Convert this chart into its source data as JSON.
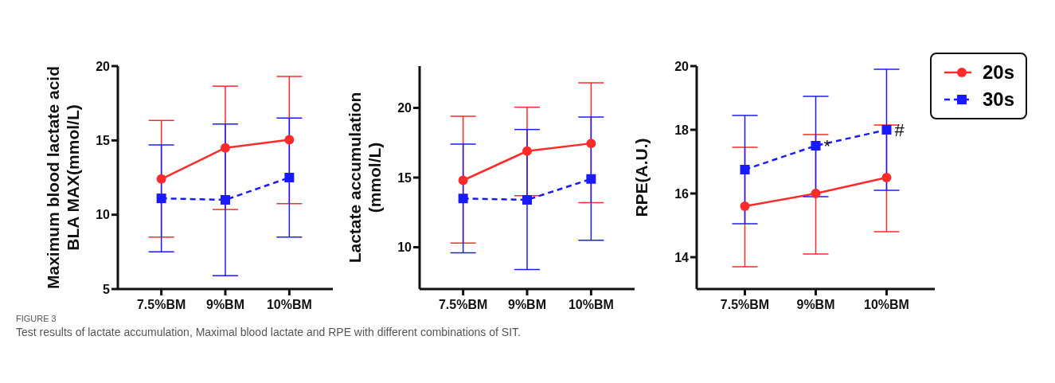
{
  "chart_data": [
    {
      "type": "line",
      "ylabel": "Maximum blood lactate acid\nBLA MAX(mmol/L)",
      "categories": [
        "7.5%BM",
        "9%BM",
        "10%BM"
      ],
      "ylim": [
        5,
        20
      ],
      "yticks": [
        5,
        10,
        15,
        20
      ],
      "grid": false,
      "legend": false,
      "series": [
        {
          "color": "#ff2a2a",
          "marker": "circle",
          "line_style": "solid",
          "values": [
            12.4,
            14.5,
            15.05
          ],
          "errors": [
            [
              8.5,
              16.35
            ],
            [
              10.35,
              18.65
            ],
            [
              10.75,
              19.3
            ]
          ]
        },
        {
          "color": "#1a1aff",
          "marker": "square",
          "line_style": "dashed",
          "values": [
            11.1,
            11.0,
            12.5
          ],
          "errors": [
            [
              7.5,
              14.7
            ],
            [
              5.9,
              16.1
            ],
            [
              8.5,
              16.5
            ]
          ]
        }
      ],
      "annotations": [
        "FIGURE 3",
        "Test results of lactate accumulation, Maximal blood lactate and RPE with different combinations of SIT."
      ]
    },
    {
      "type": "line",
      "ylabel": "Lactate accumulation\n(mmol/L)",
      "categories": [
        "7.5%BM",
        "9%BM",
        "10%BM"
      ],
      "ylim": [
        7,
        23
      ],
      "yticks": [
        10,
        15,
        20
      ],
      "grid": false,
      "legend": false,
      "series": [
        {
          "color": "#ff2a2a",
          "marker": "circle",
          "line_style": "solid",
          "values": [
            14.8,
            16.9,
            17.45
          ],
          "errors": [
            [
              10.3,
              19.4
            ],
            [
              13.7,
              20.05
            ],
            [
              13.2,
              21.8
            ]
          ]
        },
        {
          "color": "#1a1aff",
          "marker": "square",
          "line_style": "dashed",
          "values": [
            13.5,
            13.4,
            14.9
          ],
          "errors": [
            [
              9.6,
              17.4
            ],
            [
              8.4,
              18.45
            ],
            [
              10.5,
              19.35
            ]
          ]
        }
      ]
    },
    {
      "type": "line",
      "ylabel": "RPE(A.U.)",
      "categories": [
        "7.5%BM",
        "9%BM",
        "10%BM"
      ],
      "ylim": [
        13,
        20
      ],
      "yticks": [
        14,
        16,
        18,
        20
      ],
      "grid": false,
      "legend": "right",
      "series": [
        {
          "name": "20s",
          "color": "#ff2a2a",
          "marker": "circle",
          "line_style": "solid",
          "values": [
            15.6,
            16.0,
            16.5
          ],
          "errors": [
            [
              13.7,
              17.45
            ],
            [
              14.1,
              17.85
            ],
            [
              14.8,
              18.15
            ]
          ]
        },
        {
          "name": "30s",
          "color": "#1a1aff",
          "marker": "square",
          "line_style": "dashed",
          "values": [
            16.75,
            17.5,
            18.0
          ],
          "errors": [
            [
              15.05,
              18.45
            ],
            [
              15.9,
              19.05
            ],
            [
              16.1,
              19.9
            ]
          ]
        }
      ],
      "annotations": [
        {
          "text": "*",
          "x": "9%BM",
          "y": 17.5
        },
        {
          "text": "#",
          "x": "10%BM",
          "y": 18.0
        }
      ]
    }
  ]
}
